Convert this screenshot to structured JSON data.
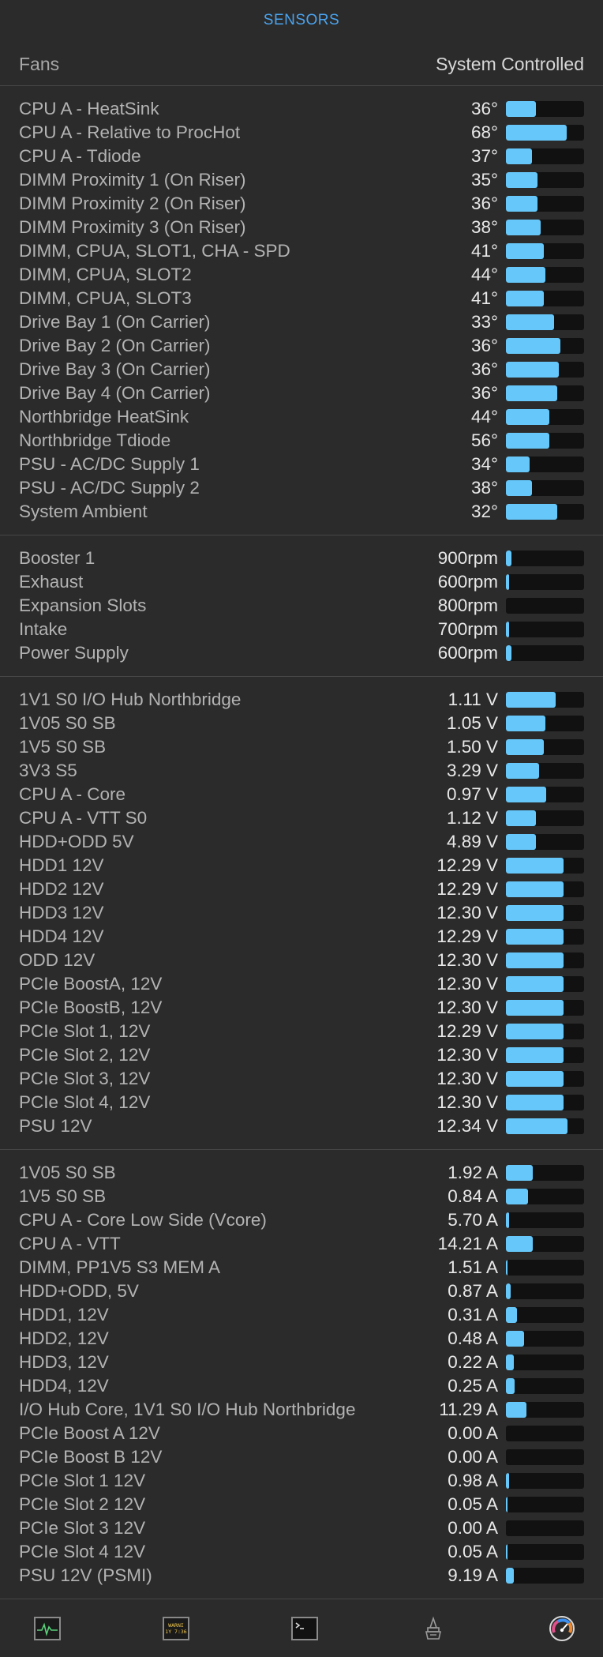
{
  "header": {
    "title": "SENSORS"
  },
  "fans": {
    "label": "Fans",
    "mode": "System Controlled"
  },
  "sections": [
    {
      "name": "temperatures",
      "items": [
        {
          "name": "CPU A - HeatSink",
          "value": "36°",
          "level": 0.38
        },
        {
          "name": "CPU A - Relative to ProcHot",
          "value": "68°",
          "level": 0.78
        },
        {
          "name": "CPU A - Tdiode",
          "value": "37°",
          "level": 0.33
        },
        {
          "name": "DIMM Proximity 1 (On Riser)",
          "value": "35°",
          "level": 0.4
        },
        {
          "name": "DIMM Proximity 2 (On Riser)",
          "value": "36°",
          "level": 0.4
        },
        {
          "name": "DIMM Proximity 3 (On Riser)",
          "value": "38°",
          "level": 0.44
        },
        {
          "name": "DIMM, CPUA, SLOT1, CHA - SPD",
          "value": "41°",
          "level": 0.48
        },
        {
          "name": "DIMM, CPUA, SLOT2",
          "value": "44°",
          "level": 0.5
        },
        {
          "name": "DIMM, CPUA, SLOT3",
          "value": "41°",
          "level": 0.48
        },
        {
          "name": "Drive Bay 1 (On Carrier)",
          "value": "33°",
          "level": 0.62
        },
        {
          "name": "Drive Bay 2 (On Carrier)",
          "value": "36°",
          "level": 0.7
        },
        {
          "name": "Drive Bay 3 (On Carrier)",
          "value": "36°",
          "level": 0.68
        },
        {
          "name": "Drive Bay 4 (On Carrier)",
          "value": "36°",
          "level": 0.66
        },
        {
          "name": "Northbridge HeatSink",
          "value": "44°",
          "level": 0.56
        },
        {
          "name": "Northbridge Tdiode",
          "value": "56°",
          "level": 0.56
        },
        {
          "name": "PSU - AC/DC Supply 1",
          "value": "34°",
          "level": 0.3
        },
        {
          "name": "PSU - AC/DC Supply 2",
          "value": "38°",
          "level": 0.33
        },
        {
          "name": "System Ambient",
          "value": "32°",
          "level": 0.66
        }
      ]
    },
    {
      "name": "fan-speeds",
      "items": [
        {
          "name": "Booster 1",
          "value": "900rpm",
          "level": 0.07
        },
        {
          "name": "Exhaust",
          "value": "600rpm",
          "level": 0.04
        },
        {
          "name": "Expansion Slots",
          "value": "800rpm",
          "level": 0.0
        },
        {
          "name": "Intake",
          "value": "700rpm",
          "level": 0.04
        },
        {
          "name": "Power Supply",
          "value": "600rpm",
          "level": 0.07
        }
      ]
    },
    {
      "name": "voltages",
      "items": [
        {
          "name": "1V1 S0 I/O Hub Northbridge",
          "value": "1.11 V",
          "level": 0.64
        },
        {
          "name": "1V05 S0 SB",
          "value": "1.05 V",
          "level": 0.5
        },
        {
          "name": "1V5 S0 SB",
          "value": "1.50 V",
          "level": 0.48
        },
        {
          "name": "3V3 S5",
          "value": "3.29 V",
          "level": 0.42
        },
        {
          "name": "CPU A - Core",
          "value": "0.97 V",
          "level": 0.52
        },
        {
          "name": "CPU A - VTT S0",
          "value": "1.12 V",
          "level": 0.38
        },
        {
          "name": "HDD+ODD 5V",
          "value": "4.89 V",
          "level": 0.38
        },
        {
          "name": "HDD1 12V",
          "value": "12.29 V",
          "level": 0.74
        },
        {
          "name": "HDD2 12V",
          "value": "12.29 V",
          "level": 0.74
        },
        {
          "name": "HDD3 12V",
          "value": "12.30 V",
          "level": 0.74
        },
        {
          "name": "HDD4 12V",
          "value": "12.29 V",
          "level": 0.74
        },
        {
          "name": "ODD 12V",
          "value": "12.30 V",
          "level": 0.74
        },
        {
          "name": "PCIe BoostA, 12V",
          "value": "12.30 V",
          "level": 0.74
        },
        {
          "name": "PCIe BoostB, 12V",
          "value": "12.30 V",
          "level": 0.74
        },
        {
          "name": "PCIe Slot 1, 12V",
          "value": "12.29 V",
          "level": 0.74
        },
        {
          "name": "PCIe Slot 2, 12V",
          "value": "12.30 V",
          "level": 0.74
        },
        {
          "name": "PCIe Slot 3, 12V",
          "value": "12.30 V",
          "level": 0.74
        },
        {
          "name": "PCIe Slot 4, 12V",
          "value": "12.30 V",
          "level": 0.74
        },
        {
          "name": "PSU 12V",
          "value": "12.34 V",
          "level": 0.79
        }
      ]
    },
    {
      "name": "currents",
      "items": [
        {
          "name": "1V05 S0 SB",
          "value": "1.92 A",
          "level": 0.34
        },
        {
          "name": "1V5 S0 SB",
          "value": "0.84 A",
          "level": 0.28
        },
        {
          "name": "CPU A - Core Low Side (Vcore)",
          "value": "5.70 A",
          "level": 0.04
        },
        {
          "name": "CPU A - VTT",
          "value": "14.21 A",
          "level": 0.34
        },
        {
          "name": "DIMM, PP1V5 S3 MEM A",
          "value": "1.51 A",
          "level": 0.02
        },
        {
          "name": "HDD+ODD, 5V",
          "value": "0.87 A",
          "level": 0.06
        },
        {
          "name": "HDD1, 12V",
          "value": "0.31 A",
          "level": 0.14
        },
        {
          "name": "HDD2, 12V",
          "value": "0.48 A",
          "level": 0.23
        },
        {
          "name": "HDD3, 12V",
          "value": "0.22 A",
          "level": 0.1
        },
        {
          "name": "HDD4, 12V",
          "value": "0.25 A",
          "level": 0.11
        },
        {
          "name": "I/O Hub Core, 1V1 S0 I/O Hub Northbridge",
          "value": "11.29 A",
          "level": 0.26
        },
        {
          "name": "PCIe Boost A 12V",
          "value": "0.00 A",
          "level": 0.0
        },
        {
          "name": "PCIe Boost B 12V",
          "value": "0.00 A",
          "level": 0.0
        },
        {
          "name": "PCIe Slot 1 12V",
          "value": "0.98 A",
          "level": 0.04
        },
        {
          "name": "PCIe Slot 2 12V",
          "value": "0.05 A",
          "level": 0.02
        },
        {
          "name": "PCIe Slot 3 12V",
          "value": "0.00 A",
          "level": 0.0
        },
        {
          "name": "PCIe Slot 4 12V",
          "value": "0.05 A",
          "level": 0.02
        },
        {
          "name": "PSU 12V (PSMI)",
          "value": "9.19 A",
          "level": 0.1
        }
      ]
    }
  ],
  "tabbar": {
    "tabs": [
      {
        "name": "activity-monitor-tab",
        "icon": "activity-monitor-icon"
      },
      {
        "name": "console-tab",
        "icon": "console-warning-icon",
        "line1": "WARNI",
        "line2": "1Y 7:36"
      },
      {
        "name": "terminal-tab",
        "icon": "terminal-icon",
        "glyph": ">_"
      },
      {
        "name": "system-info-tab",
        "icon": "system-info-icon"
      },
      {
        "name": "sensors-tab",
        "icon": "sensors-gauge-icon"
      }
    ]
  },
  "colors": {
    "accent": "#4aa3ee",
    "bar_fill": "#66c8fa",
    "bar_track": "#111111",
    "background": "#2b2b2b"
  }
}
